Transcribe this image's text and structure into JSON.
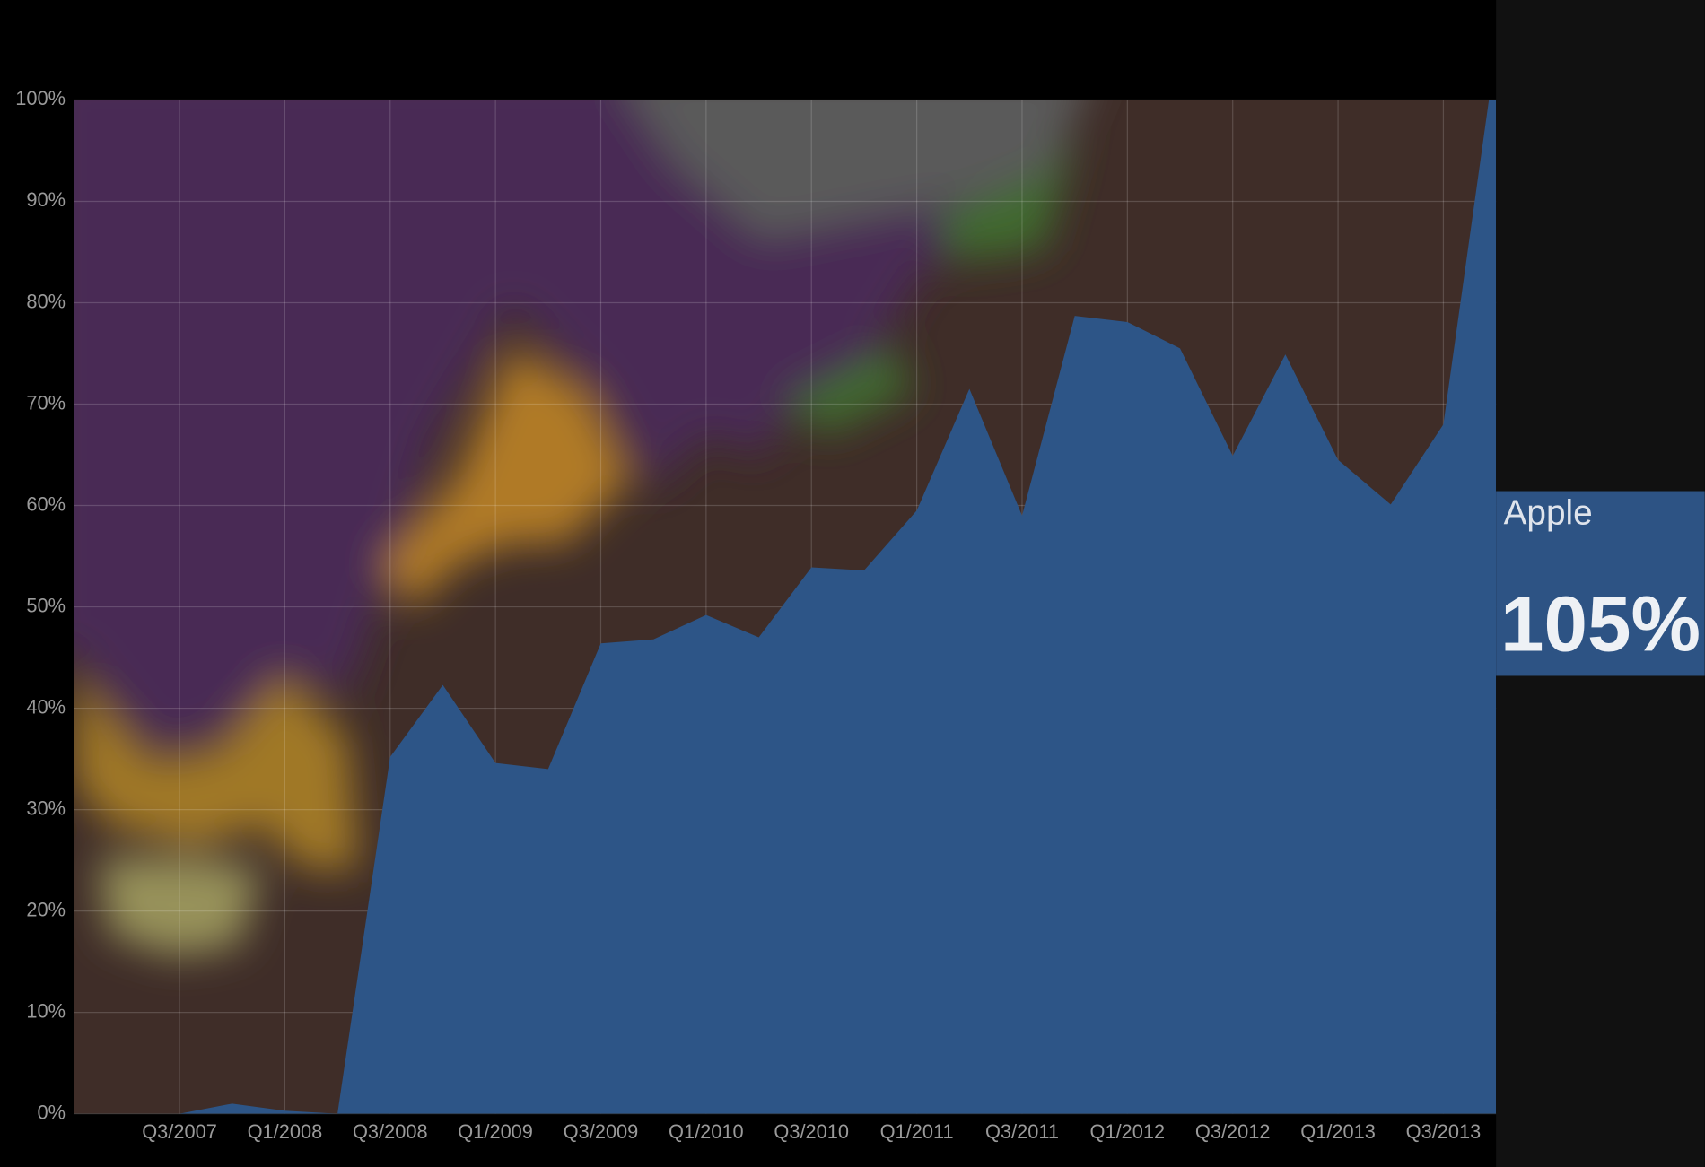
{
  "chart_data": {
    "type": "area",
    "categories": [
      null,
      null,
      "Q3/2007",
      null,
      "Q1/2008",
      null,
      "Q3/2008",
      null,
      "Q1/2009",
      null,
      "Q3/2009",
      null,
      "Q1/2010",
      null,
      "Q3/2010",
      null,
      "Q1/2011",
      null,
      "Q3/2011",
      null,
      "Q1/2012",
      null,
      "Q3/2012",
      null,
      "Q1/2013",
      null,
      "Q3/2013",
      null
    ],
    "series": [
      {
        "name": "Apple",
        "color": "#2d5587",
        "values": [
          null,
          null,
          0,
          1,
          0.3,
          0,
          35.2,
          42.3,
          34.6,
          34,
          46.4,
          46.8,
          49.2,
          47,
          53.9,
          53.6,
          59.5,
          71.5,
          59,
          78.7,
          78.1,
          75.5,
          64.9,
          74.9,
          64.5,
          60.1,
          68,
          105
        ],
        "value_labels": [
          null,
          null,
          null,
          null,
          null,
          null,
          null,
          null,
          null,
          null,
          null,
          null,
          null,
          null,
          null,
          null,
          null,
          null,
          null,
          null,
          null,
          null,
          null,
          null,
          null,
          null,
          null,
          "105%"
        ]
      }
    ],
    "ylim": [
      0,
      100
    ],
    "yticks": [
      {
        "value": 0,
        "label": "0%"
      },
      {
        "value": 10,
        "label": "10%"
      },
      {
        "value": 20,
        "label": "20%"
      },
      {
        "value": 30,
        "label": "30%"
      },
      {
        "value": 40,
        "label": "40%"
      },
      {
        "value": 50,
        "label": "50%"
      },
      {
        "value": 60,
        "label": "60%"
      },
      {
        "value": 70,
        "label": "70%"
      },
      {
        "value": 80,
        "label": "80%"
      },
      {
        "value": 90,
        "label": "90%"
      },
      {
        "value": 100,
        "label": "100%"
      }
    ],
    "grid": true
  }
}
